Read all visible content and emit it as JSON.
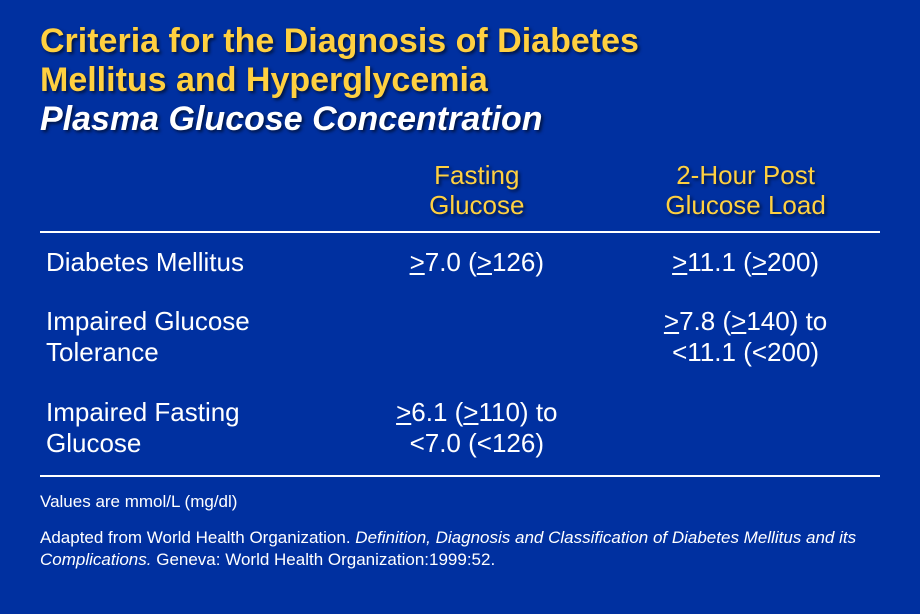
{
  "palette": {
    "background": "#0030a0",
    "accent": "#ffd040",
    "text": "#ffffff",
    "rule": "#ffffff"
  },
  "typography": {
    "family": "Verdana, Geneva, sans-serif",
    "title_fontsize": 34,
    "header_fontsize": 26,
    "cell_fontsize": 26,
    "footnote_fontsize": 17,
    "title_weight": "bold",
    "shadow": "2px 2px 3px rgba(0,0,0,0.6)"
  },
  "title": {
    "line1": "Criteria for the Diagnosis of Diabetes",
    "line2": "Mellitus and Hyperglycemia",
    "line3": "Plasma Glucose Concentration"
  },
  "table": {
    "type": "table",
    "border_color": "#ffffff",
    "border_width": 2,
    "column_widths_pct": [
      36,
      32,
      32
    ],
    "columns": [
      "",
      "Fasting Glucose",
      "2-Hour Post Glucose Load"
    ],
    "columns_html": [
      "",
      "Fasting<br>Glucose",
      "2-Hour Post<br>Glucose Load"
    ],
    "rows": [
      {
        "label": "Diabetes Mellitus",
        "fasting": "≥7.0 (≥126)",
        "post": "≥11.1 (≥200)",
        "fasting_html": "<span class=\"ge\">&gt;</span>7.0 (<span class=\"ge\">&gt;</span>126)",
        "post_html": "<span class=\"ge\">&gt;</span>11.1 (<span class=\"ge\">&gt;</span>200)"
      },
      {
        "label": "Impaired Glucose Tolerance",
        "label_html": "Impaired Glucose<br>Tolerance",
        "fasting": "",
        "fasting_html": "",
        "post": "≥7.8 (≥140) to <11.1 (<200)",
        "post_html": "<span class=\"ge\">&gt;</span>7.8 (<span class=\"ge\">&gt;</span>140) to<br>&lt;11.1 (&lt;200)"
      },
      {
        "label": "Impaired Fasting Glucose",
        "label_html": "Impaired Fasting<br>Glucose",
        "fasting": "≥6.1 (≥110) to <7.0 (<126)",
        "fasting_html": "<span class=\"ge\">&gt;</span>6.1 (<span class=\"ge\">&gt;</span>110) to<br>&lt;7.0 (&lt;126)",
        "post": "",
        "post_html": ""
      }
    ]
  },
  "footnote": {
    "units": "Values are mmol/L (mg/dl)",
    "citation_prefix": "Adapted from World Health Organization. ",
    "citation_italic": "Definition, Diagnosis and Classification of Diabetes Mellitus and its Complications.",
    "citation_suffix": " Geneva: World Health Organization:1999:52."
  }
}
